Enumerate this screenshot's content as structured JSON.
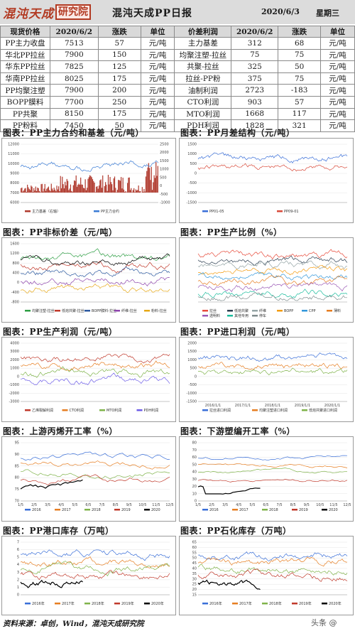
{
  "header": {
    "logo_text": "混沌天成",
    "logo_seal": "研究院",
    "title": "混沌天成PP日报",
    "date": "2020/6/3",
    "weekday": "星期三"
  },
  "table": {
    "headers": [
      "现货价格",
      "2020/6/2",
      "涨跌",
      "单位",
      "价差利润",
      "2020/6/2",
      "涨跌",
      "单位"
    ],
    "rows": [
      [
        "PP主力收盘",
        "7513",
        "57",
        "元/吨",
        "主力基差",
        "312",
        "68",
        "元/吨"
      ],
      [
        "华北PP拉丝",
        "7900",
        "150",
        "元/吨",
        "均聚注塑-拉丝",
        "75",
        "75",
        "元/吨"
      ],
      [
        "华东PP拉丝",
        "7825",
        "125",
        "元/吨",
        "共聚-拉丝",
        "325",
        "50",
        "元/吨"
      ],
      [
        "华南PP拉丝",
        "8025",
        "175",
        "元/吨",
        "拉丝-PP粉",
        "375",
        "75",
        "元/吨"
      ],
      [
        "PP均聚注塑",
        "7900",
        "200",
        "元/吨",
        "油制利润",
        "2723",
        "-183",
        "元/吨"
      ],
      [
        "BOPP膜料",
        "7700",
        "250",
        "元/吨",
        "CTO利润",
        "903",
        "57",
        "元/吨"
      ],
      [
        "PP共聚",
        "8150",
        "175",
        "元/吨",
        "MTO利润",
        "1668",
        "117",
        "元/吨"
      ],
      [
        "PP粉料",
        "7450",
        "50",
        "元/吨",
        "PDH利润",
        "1828",
        "321",
        "元/吨"
      ]
    ]
  },
  "sections": {
    "s1": "图表：PP主力合约和基差（元/吨）",
    "s2": "图表：PP月差结构（元/吨）",
    "s3": "图表：PP非标价差（元/吨）",
    "s4": "图表：PP生产比例（%）",
    "s5": "图表：PP生产利润（元/吨）",
    "s6": "图表：PP进口利润（元/吨）",
    "s7": "图表：上游丙烯开工率（%）",
    "s8": "图表：下游塑编开工率（%）",
    "s9": "图表：PP港口库存（万吨）",
    "s10": "图表：PP石化库存（万吨）"
  },
  "footer": "资料来源：卓创，Wind，混沌天成研究院",
  "watermark": "头条 @",
  "chart_data": [
    {
      "type": "line",
      "title": "图表：PP主力合约和基差（元/吨）",
      "yticks_left": [
        12000,
        11000,
        10000,
        9000,
        8000,
        7000,
        6000
      ],
      "yticks_right": [
        2500,
        2000,
        1500,
        1000,
        500,
        0,
        -500,
        -1000
      ],
      "series": [
        {
          "name": "主力基差（右轴）",
          "color": "#b03a2e"
        },
        {
          "name": "PP主力合约",
          "color": "#3a7bd5"
        }
      ]
    },
    {
      "type": "line",
      "title": "图表：PP月差结构（元/吨）",
      "yticks": [
        1500,
        1000,
        500,
        0,
        -500,
        -1000,
        -1500
      ],
      "series": [
        {
          "name": "PP01-05",
          "color": "#3a6fd8"
        },
        {
          "name": "PP09-01",
          "color": "#d84a3a"
        }
      ]
    },
    {
      "type": "line",
      "title": "图表：PP非标价差（元/吨）",
      "yticks": [
        1600,
        1200,
        800,
        400,
        0,
        -400,
        -800
      ],
      "series": [
        {
          "name": "均聚注塑-拉丝",
          "color": "#2e9e44"
        },
        {
          "name": "低熔共聚-拉丝",
          "color": "#c0392b"
        },
        {
          "name": "BOPP膜料-拉丝",
          "color": "#2c5aa0"
        },
        {
          "name": "纤维-拉丝",
          "color": "#8e44ad"
        },
        {
          "name": "粉料-拉丝",
          "color": "#e6a817"
        },
        {
          "name": "",
          "color": "#000000"
        }
      ]
    },
    {
      "type": "line",
      "title": "图表：PP生产比例（%）",
      "series": [
        {
          "name": "拉丝",
          "color": "#e74c3c"
        },
        {
          "name": "低熔共聚",
          "color": "#2c3e50"
        },
        {
          "name": "纤维",
          "color": "#95a5a6"
        },
        {
          "name": "BOPP",
          "color": "#f39c12"
        },
        {
          "name": "CPP",
          "color": "#3498db"
        },
        {
          "name": "薄料",
          "color": "#e67e22"
        },
        {
          "name": "透明料",
          "color": "#9b59b6"
        },
        {
          "name": "其他专用",
          "color": "#1abc9c"
        },
        {
          "name": "停车",
          "color": "#7f8c8d"
        }
      ]
    },
    {
      "type": "line",
      "title": "图表：PP生产利润（元/吨）",
      "yticks": [
        4000,
        3000,
        2000,
        1000,
        0,
        -1000,
        -2000,
        -3000
      ],
      "series": [
        {
          "name": "乙烯裂解利润",
          "color": "#c0392b"
        },
        {
          "name": "CTO利润",
          "color": "#e67e22"
        },
        {
          "name": "MTO利润",
          "color": "#7fb34a"
        },
        {
          "name": "PDH利润",
          "color": "#6c5ce7"
        }
      ]
    },
    {
      "type": "line",
      "title": "图表：PP进口利润（元/吨）",
      "yticks": [
        2000,
        1500,
        1000,
        500,
        0,
        -500,
        -1000,
        -1500
      ],
      "x": [
        "2016/1/1",
        "2017/1/1",
        "2018/1/1",
        "2019/1/1",
        "2020/1/1"
      ],
      "series": [
        {
          "name": "拉丝进口利润",
          "color": "#3a6fd8"
        },
        {
          "name": "均聚注塑进口利润",
          "color": "#e67e22"
        },
        {
          "name": "低熔共聚进口利润",
          "color": "#7fb34a"
        }
      ]
    },
    {
      "type": "line",
      "title": "图表：上游丙烯开工率（%）",
      "categories": [
        "1/5",
        "2/5",
        "3/5",
        "4/5",
        "5/5",
        "6/5",
        "7/5",
        "8/5",
        "9/5",
        "10/5",
        "11/5",
        "12/5"
      ],
      "yticks": [
        95,
        90,
        85,
        80,
        75,
        70
      ],
      "series": [
        {
          "name": "2016",
          "color": "#3a6fd8"
        },
        {
          "name": "2017",
          "color": "#e67e22"
        },
        {
          "name": "2018",
          "color": "#7fb34a"
        },
        {
          "name": "2019",
          "color": "#c0392b"
        },
        {
          "name": "2020",
          "color": "#000000"
        }
      ]
    },
    {
      "type": "line",
      "title": "图表：下游塑编开工率（%）",
      "categories": [
        "1/5",
        "2/5",
        "3/5",
        "4/5",
        "5/5",
        "6/5",
        "7/5",
        "8/5",
        "9/5",
        "10/5",
        "11/5",
        "12/5"
      ],
      "yticks": [
        80,
        70,
        60,
        50,
        40,
        30,
        20,
        10,
        0
      ],
      "series": [
        {
          "name": "2016",
          "color": "#3a6fd8"
        },
        {
          "name": "2017",
          "color": "#e67e22"
        },
        {
          "name": "2018",
          "color": "#7fb34a"
        },
        {
          "name": "2019",
          "color": "#c0392b"
        },
        {
          "name": "2020",
          "color": "#000000"
        }
      ]
    },
    {
      "type": "line",
      "title": "图表：PP港口库存（万吨）",
      "yticks": [
        7,
        6,
        5,
        4,
        3,
        2,
        1,
        0
      ],
      "series": [
        {
          "name": "2016年",
          "color": "#3a6fd8"
        },
        {
          "name": "2017年",
          "color": "#e67e22"
        },
        {
          "name": "2018年",
          "color": "#7fb34a"
        },
        {
          "name": "2019年",
          "color": "#c0392b"
        },
        {
          "name": "2020年",
          "color": "#000000"
        }
      ]
    },
    {
      "type": "line",
      "title": "图表：PP石化库存（万吨）",
      "yticks": [
        65,
        60,
        55,
        50,
        45,
        40,
        35,
        30,
        25,
        20,
        15
      ],
      "series": [
        {
          "name": "2016年",
          "color": "#3a6fd8"
        },
        {
          "name": "2017年",
          "color": "#e67e22"
        },
        {
          "name": "2018年",
          "color": "#7fb34a"
        },
        {
          "name": "2019年",
          "color": "#c0392b"
        },
        {
          "name": "2020年",
          "color": "#000000"
        }
      ]
    }
  ]
}
